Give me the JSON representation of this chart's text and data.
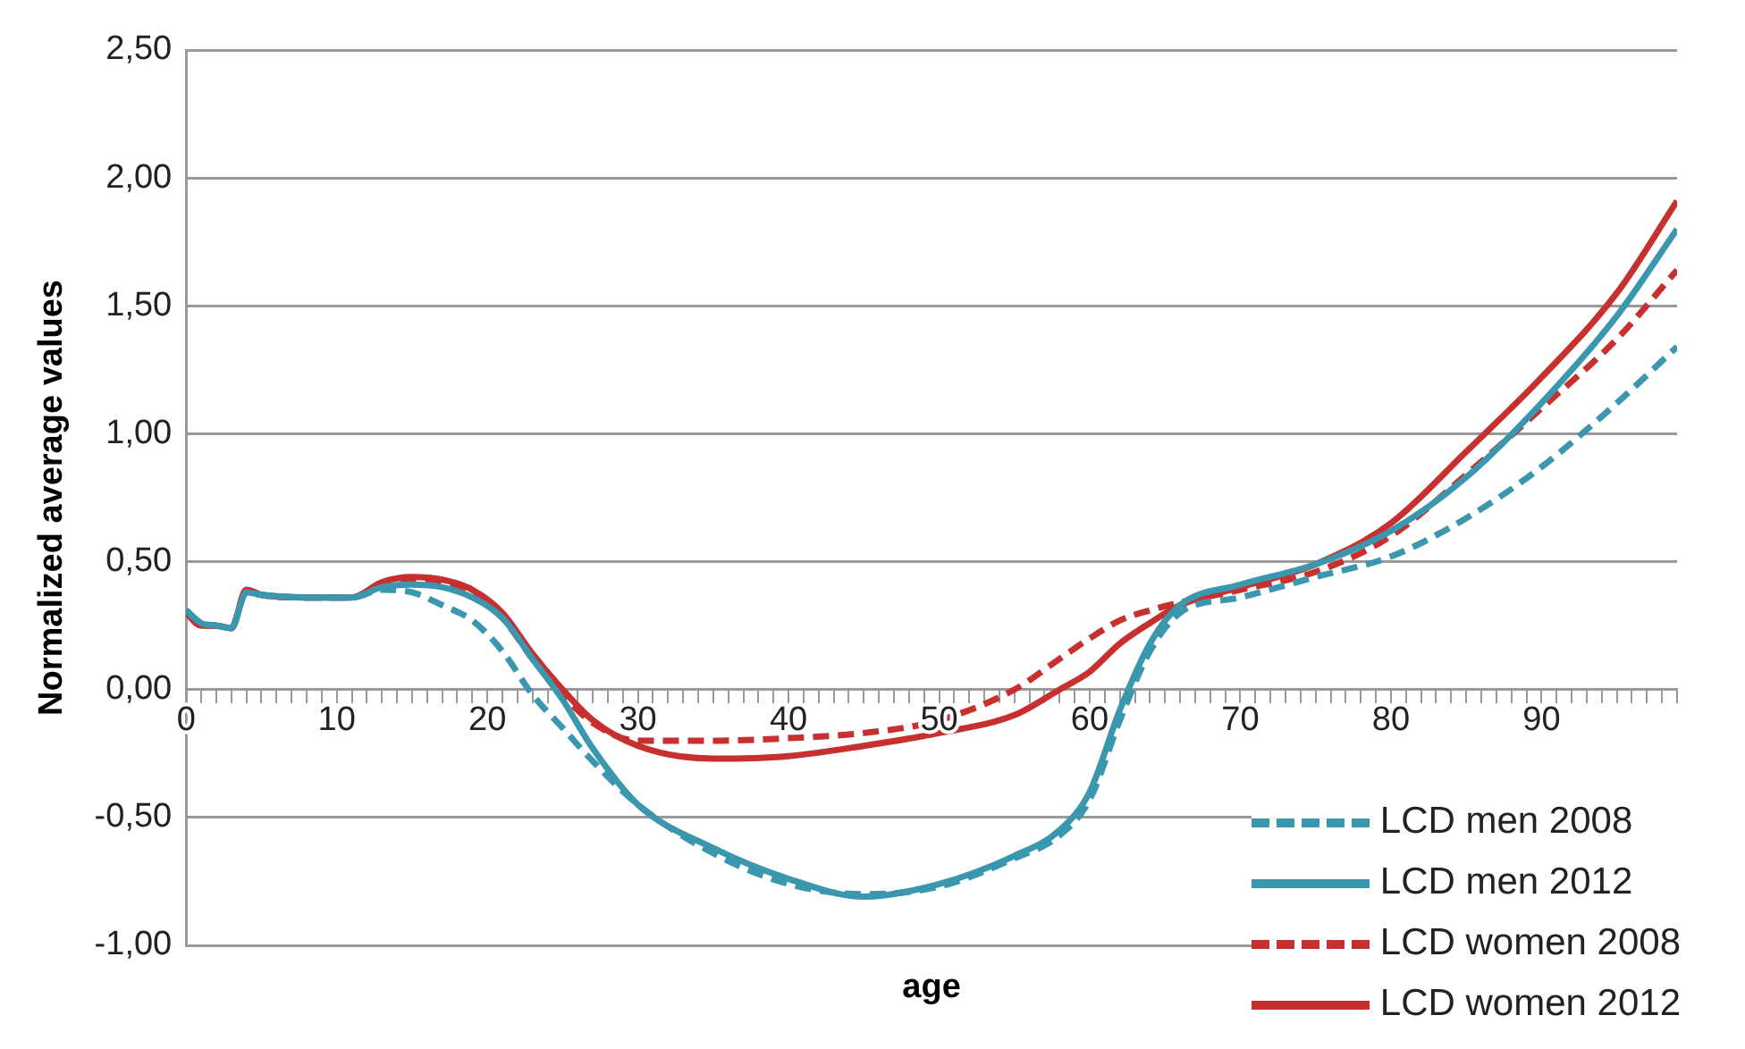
{
  "chart_data": {
    "type": "line",
    "xlabel": "age",
    "ylabel": "Normalized average values",
    "xlim": [
      0,
      99
    ],
    "xticks": [
      0,
      {
        "value": 1,
        "label": null
      },
      {
        "value": 2,
        "label": null
      },
      {
        "value": 3,
        "label": null
      },
      {
        "value": 4,
        "label": null
      },
      {
        "value": 5,
        "label": null
      },
      {
        "value": 6,
        "label": null
      },
      {
        "value": 7,
        "label": null
      },
      {
        "value": 8,
        "label": null
      },
      {
        "value": 9,
        "label": null
      },
      10,
      {
        "value": 11,
        "label": null
      },
      {
        "value": 12,
        "label": null
      },
      {
        "value": 13,
        "label": null
      },
      {
        "value": 14,
        "label": null
      },
      {
        "value": 15,
        "label": null
      },
      {
        "value": 16,
        "label": null
      },
      {
        "value": 17,
        "label": null
      },
      {
        "value": 18,
        "label": null
      },
      {
        "value": 19,
        "label": null
      },
      20,
      {
        "value": 21,
        "label": null
      },
      {
        "value": 22,
        "label": null
      },
      {
        "value": 23,
        "label": null
      },
      {
        "value": 24,
        "label": null
      },
      {
        "value": 25,
        "label": null
      },
      {
        "value": 26,
        "label": null
      },
      {
        "value": 27,
        "label": null
      },
      {
        "value": 28,
        "label": null
      },
      {
        "value": 29,
        "label": null
      },
      30,
      {
        "value": 31,
        "label": null
      },
      {
        "value": 32,
        "label": null
      },
      {
        "value": 33,
        "label": null
      },
      {
        "value": 34,
        "label": null
      },
      {
        "value": 35,
        "label": null
      },
      {
        "value": 36,
        "label": null
      },
      {
        "value": 37,
        "label": null
      },
      {
        "value": 38,
        "label": null
      },
      {
        "value": 39,
        "label": null
      },
      40,
      {
        "value": 41,
        "label": null
      },
      {
        "value": 42,
        "label": null
      },
      {
        "value": 43,
        "label": null
      },
      {
        "value": 44,
        "label": null
      },
      {
        "value": 45,
        "label": null
      },
      {
        "value": 46,
        "label": null
      },
      {
        "value": 47,
        "label": null
      },
      {
        "value": 48,
        "label": null
      },
      {
        "value": 49,
        "label": null
      },
      50,
      {
        "value": 51,
        "label": null
      },
      {
        "value": 52,
        "label": null
      },
      {
        "value": 53,
        "label": null
      },
      {
        "value": 54,
        "label": null
      },
      {
        "value": 55,
        "label": null
      },
      {
        "value": 56,
        "label": null
      },
      {
        "value": 57,
        "label": null
      },
      {
        "value": 58,
        "label": null
      },
      {
        "value": 59,
        "label": null
      },
      60,
      {
        "value": 61,
        "label": null
      },
      {
        "value": 62,
        "label": null
      },
      {
        "value": 63,
        "label": null
      },
      {
        "value": 64,
        "label": null
      },
      {
        "value": 65,
        "label": null
      },
      {
        "value": 66,
        "label": null
      },
      {
        "value": 67,
        "label": null
      },
      {
        "value": 68,
        "label": null
      },
      {
        "value": 69,
        "label": null
      },
      70,
      {
        "value": 71,
        "label": null
      },
      {
        "value": 72,
        "label": null
      },
      {
        "value": 73,
        "label": null
      },
      {
        "value": 74,
        "label": null
      },
      {
        "value": 75,
        "label": null
      },
      {
        "value": 76,
        "label": null
      },
      {
        "value": 77,
        "label": null
      },
      {
        "value": 78,
        "label": null
      },
      {
        "value": 79,
        "label": null
      },
      80,
      {
        "value": 81,
        "label": null
      },
      {
        "value": 82,
        "label": null
      },
      {
        "value": 83,
        "label": null
      },
      {
        "value": 84,
        "label": null
      },
      {
        "value": 85,
        "label": null
      },
      {
        "value": 86,
        "label": null
      },
      {
        "value": 87,
        "label": null
      },
      {
        "value": 88,
        "label": null
      },
      {
        "value": 89,
        "label": null
      },
      90,
      {
        "value": 91,
        "label": null
      },
      {
        "value": 92,
        "label": null
      },
      {
        "value": 93,
        "label": null
      },
      {
        "value": 94,
        "label": null
      },
      {
        "value": 95,
        "label": null
      },
      {
        "value": 96,
        "label": null
      },
      {
        "value": 97,
        "label": null
      },
      {
        "value": 98,
        "label": null
      },
      {
        "value": 99,
        "label": null
      }
    ],
    "ylim": [
      -1,
      2.5
    ],
    "yticks": [
      {
        "value": -1,
        "label": "-1,00"
      },
      {
        "value": -0.5,
        "label": "-0,50"
      },
      {
        "value": 0,
        "label": "0,00"
      },
      {
        "value": 0.5,
        "label": "0,50"
      },
      {
        "value": 1,
        "label": "1,00"
      },
      {
        "value": 1.5,
        "label": "1,50"
      },
      {
        "value": 2,
        "label": "2,00"
      },
      {
        "value": 2.5,
        "label": "2,50"
      }
    ],
    "grid": "y",
    "legend": "bottom right",
    "marker": "none",
    "x": [
      0,
      1,
      2,
      3,
      4,
      5,
      8,
      11,
      13,
      15,
      17,
      19,
      21,
      23,
      25,
      27,
      30,
      35,
      40,
      45,
      50,
      55,
      58,
      60,
      62,
      64,
      66,
      70,
      75,
      80,
      85,
      90,
      95,
      99
    ],
    "series": [
      {
        "name": "LCD men 2008",
        "color": "#3a97ad",
        "line_style": "dashed",
        "values": [
          0.31,
          0.26,
          0.25,
          0.24,
          0.38,
          0.37,
          0.36,
          0.36,
          0.39,
          0.38,
          0.33,
          0.27,
          0.15,
          -0.02,
          -0.15,
          -0.28,
          -0.45,
          -0.64,
          -0.76,
          -0.8,
          -0.77,
          -0.66,
          -0.57,
          -0.43,
          -0.12,
          0.15,
          0.3,
          0.36,
          0.44,
          0.52,
          0.67,
          0.87,
          1.12,
          1.34
        ]
      },
      {
        "name": "LCD men 2012",
        "color": "#3a97ad",
        "line_style": "solid",
        "values": [
          0.31,
          0.26,
          0.25,
          0.24,
          0.38,
          0.37,
          0.36,
          0.36,
          0.4,
          0.41,
          0.4,
          0.36,
          0.28,
          0.12,
          -0.04,
          -0.23,
          -0.45,
          -0.62,
          -0.74,
          -0.81,
          -0.76,
          -0.65,
          -0.55,
          -0.4,
          -0.08,
          0.18,
          0.33,
          0.41,
          0.49,
          0.62,
          0.83,
          1.12,
          1.46,
          1.8
        ]
      },
      {
        "name": "LCD women 2008",
        "color": "#c8302f",
        "line_style": "dashed",
        "values": [
          0.3,
          0.25,
          0.25,
          0.24,
          0.39,
          0.37,
          0.36,
          0.36,
          0.41,
          0.42,
          0.41,
          0.37,
          0.28,
          0.12,
          -0.02,
          -0.13,
          -0.2,
          -0.2,
          -0.19,
          -0.17,
          -0.12,
          0,
          0.12,
          0.2,
          0.27,
          0.31,
          0.34,
          0.39,
          0.46,
          0.6,
          0.84,
          1.1,
          1.37,
          1.64
        ]
      },
      {
        "name": "LCD women 2012",
        "color": "#c8302f",
        "line_style": "solid",
        "values": [
          0.3,
          0.25,
          0.25,
          0.24,
          0.39,
          0.37,
          0.36,
          0.36,
          0.42,
          0.44,
          0.43,
          0.39,
          0.3,
          0.14,
          0,
          -0.12,
          -0.22,
          -0.27,
          -0.26,
          -0.22,
          -0.17,
          -0.1,
          0,
          0.07,
          0.18,
          0.26,
          0.33,
          0.4,
          0.49,
          0.65,
          0.93,
          1.22,
          1.55,
          1.91
        ]
      }
    ]
  }
}
